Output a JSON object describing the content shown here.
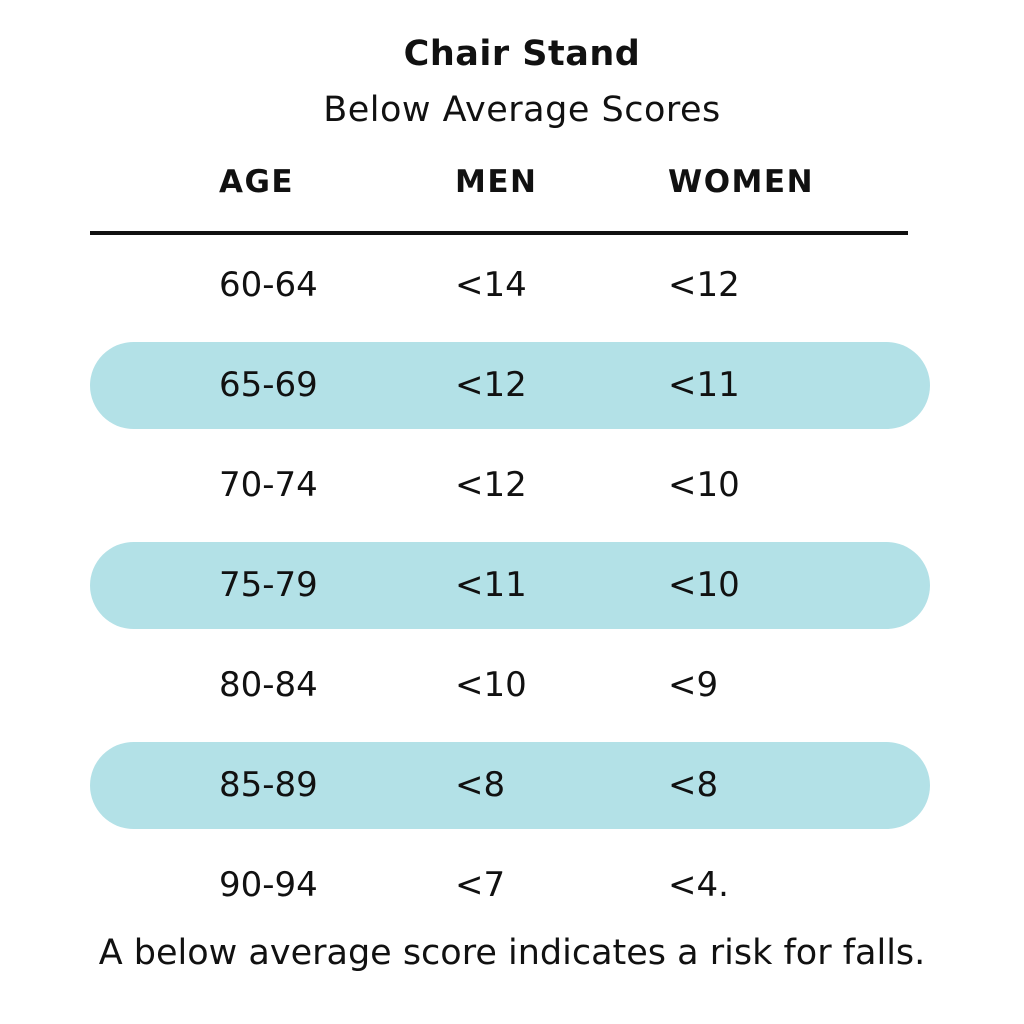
{
  "title": "Chair Stand",
  "subtitle": "Below Average Scores",
  "headers": {
    "age": "AGE",
    "men": "MEN",
    "women": "WOMEN"
  },
  "rows": [
    {
      "age": "60-64",
      "men": "<14",
      "women": "<12"
    },
    {
      "age": "65-69",
      "men": "<12",
      "women": "<11"
    },
    {
      "age": "70-74",
      "men": "<12",
      "women": "<10"
    },
    {
      "age": "75-79",
      "men": "<11",
      "women": "<10"
    },
    {
      "age": "80-84",
      "men": "<10",
      "women": "<9"
    },
    {
      "age": "85-89",
      "men": "<8",
      "women": "<8"
    },
    {
      "age": "90-94",
      "men": "<7",
      "women": "<4."
    }
  ],
  "footer": "A below average score indicates a risk for falls.",
  "colors": {
    "row_highlight": "#b3e1e7",
    "text": "#111111"
  }
}
